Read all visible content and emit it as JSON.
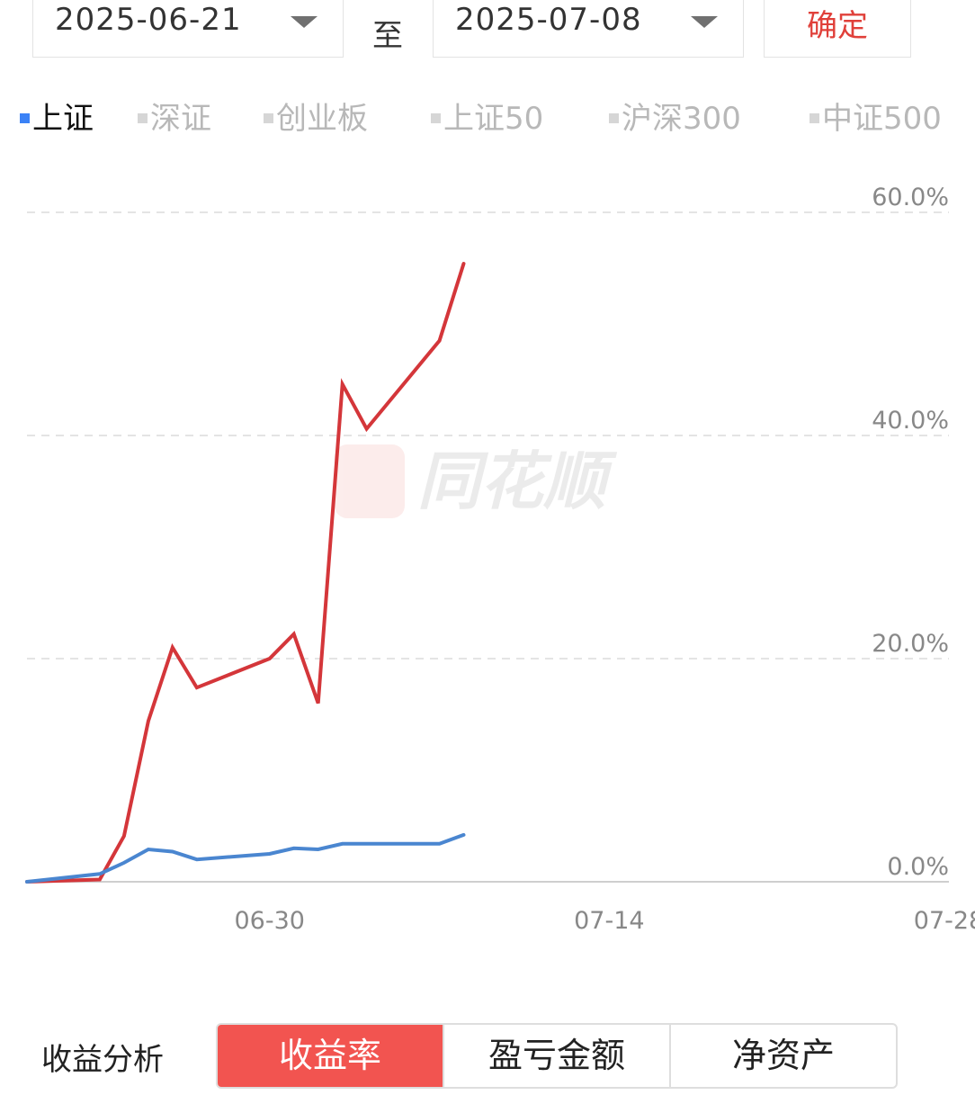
{
  "date_range": {
    "start": "2025-06-21",
    "separator": "至",
    "end": "2025-07-08",
    "confirm_label": "确定"
  },
  "index_tabs": [
    {
      "label": "上证",
      "active": true
    },
    {
      "label": "深证",
      "active": false
    },
    {
      "label": "创业板",
      "active": false
    },
    {
      "label": "上证50",
      "active": false
    },
    {
      "label": "沪深300",
      "active": false
    },
    {
      "label": "中证500",
      "active": false
    }
  ],
  "watermark": "同花顺",
  "colors": {
    "portfolio_line": "#d4363a",
    "index_line": "#4a86d0",
    "active_tab_marker": "#3b82f6",
    "confirm_text": "#e0403a",
    "segment_active_bg": "#f25450"
  },
  "chart_data": {
    "type": "line",
    "x_axis_type": "date",
    "xlim": [
      "2025-06-20",
      "2025-07-28"
    ],
    "ylim": [
      0,
      60
    ],
    "y_unit": "%",
    "grid": true,
    "y_ticks": [
      "0.0%",
      "20.0%",
      "40.0%",
      "60.0%"
    ],
    "x_ticks": [
      "06-30",
      "07-14",
      "07-28"
    ],
    "series": [
      {
        "color": "#d4363a",
        "x": [
          "2025-06-20",
          "2025-06-23",
          "2025-06-24",
          "2025-06-25",
          "2025-06-26",
          "2025-06-27",
          "2025-06-30",
          "2025-07-01",
          "2025-07-02",
          "2025-07-03",
          "2025-07-04",
          "2025-07-07",
          "2025-07-08"
        ],
        "values": [
          0.0,
          0.2,
          4.1,
          14.4,
          21.0,
          17.4,
          20.0,
          22.2,
          16.0,
          44.6,
          40.6,
          48.5,
          55.4
        ]
      },
      {
        "color": "#4a86d0",
        "x": [
          "2025-06-20",
          "2025-06-23",
          "2025-06-24",
          "2025-06-25",
          "2025-06-26",
          "2025-06-27",
          "2025-06-30",
          "2025-07-01",
          "2025-07-02",
          "2025-07-03",
          "2025-07-04",
          "2025-07-07",
          "2025-07-08"
        ],
        "values": [
          0.0,
          0.7,
          1.7,
          2.9,
          2.7,
          2.0,
          2.5,
          3.0,
          2.9,
          3.4,
          3.4,
          3.4,
          4.2
        ]
      }
    ]
  },
  "analysis": {
    "label": "收益分析",
    "options": [
      {
        "label": "收益率",
        "active": true
      },
      {
        "label": "盈亏金额",
        "active": false
      },
      {
        "label": "净资产",
        "active": false
      }
    ]
  }
}
